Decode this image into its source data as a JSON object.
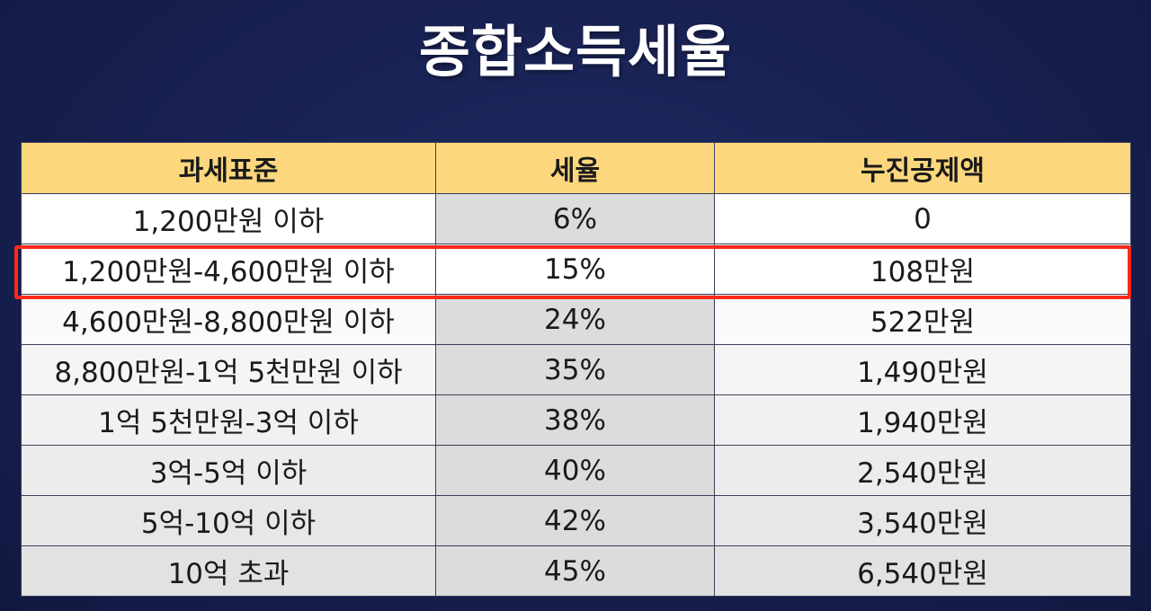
{
  "title": "종합소득세율",
  "table": {
    "headers": [
      "과세표준",
      "세율",
      "누진공제액"
    ],
    "rows": [
      {
        "bracket": "1,200만원 이하",
        "rate": "6%",
        "deduction": "0"
      },
      {
        "bracket": "1,200만원-4,600만원 이하",
        "rate": "15%",
        "deduction": "108만원"
      },
      {
        "bracket": "4,600만원-8,800만원 이하",
        "rate": "24%",
        "deduction": "522만원"
      },
      {
        "bracket": "8,800만원-1억 5천만원 이하",
        "rate": "35%",
        "deduction": "1,490만원"
      },
      {
        "bracket": "1억 5천만원-3억 이하",
        "rate": "38%",
        "deduction": "1,940만원"
      },
      {
        "bracket": "3억-5억 이하",
        "rate": "40%",
        "deduction": "2,540만원"
      },
      {
        "bracket": "5억-10억 이하",
        "rate": "42%",
        "deduction": "3,540만원"
      },
      {
        "bracket": "10억 초과",
        "rate": "45%",
        "deduction": "6,540만원"
      }
    ]
  },
  "highlight": {
    "row_index": 1,
    "color": "#ff2a1a"
  },
  "colors": {
    "background": "#17204f",
    "header_fill": "#fcd77d",
    "rate_column_fill": "#dcdcdc"
  }
}
